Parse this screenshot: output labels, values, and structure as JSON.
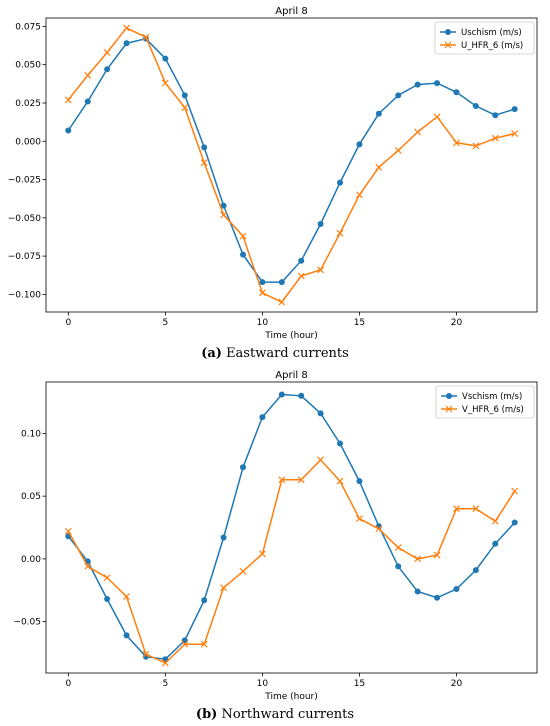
{
  "captions": [
    {
      "letter": "(a)",
      "text": " Eastward currents"
    },
    {
      "letter": "(b)",
      "text": " Northward currents"
    }
  ],
  "chart_data": [
    {
      "type": "line",
      "title": "April 8",
      "xlabel": "Time (hour)",
      "ylabel": "",
      "xlim": [
        -1.15,
        24.15
      ],
      "ylim": [
        -0.1115,
        0.0805
      ],
      "xticks": [
        0,
        5,
        10,
        15,
        20
      ],
      "yticks": [
        -0.1,
        -0.075,
        -0.05,
        -0.025,
        0.0,
        0.025,
        0.05,
        0.075
      ],
      "ytick_labels": [
        "−0.100",
        "−0.075",
        "−0.050",
        "−0.025",
        "0.000",
        "0.025",
        "0.050",
        "0.075"
      ],
      "grid": false,
      "legend": "top-right",
      "x": [
        0,
        1,
        2,
        3,
        4,
        5,
        6,
        7,
        8,
        9,
        10,
        11,
        12,
        13,
        14,
        15,
        16,
        17,
        18,
        19,
        20,
        21,
        22,
        23
      ],
      "series": [
        {
          "name": "Uschism (m/s)",
          "color": "#1f77b4",
          "marker": "circle",
          "values": [
            0.007,
            0.026,
            0.047,
            0.064,
            0.067,
            0.054,
            0.03,
            -0.004,
            -0.042,
            -0.074,
            -0.092,
            -0.092,
            -0.078,
            -0.054,
            -0.027,
            -0.002,
            0.018,
            0.03,
            0.037,
            0.038,
            0.032,
            0.023,
            0.017,
            0.021
          ]
        },
        {
          "name": "U_HFR_6 (m/s)",
          "color": "#ff7f0e",
          "marker": "x",
          "values": [
            0.027,
            0.043,
            0.058,
            0.074,
            0.068,
            0.038,
            0.022,
            -0.014,
            -0.048,
            -0.062,
            -0.099,
            -0.105,
            -0.088,
            -0.084,
            -0.06,
            -0.035,
            -0.017,
            -0.006,
            0.006,
            0.016,
            -0.001,
            -0.003,
            0.002,
            0.005
          ]
        }
      ]
    },
    {
      "type": "line",
      "title": "April 8",
      "xlabel": "Time (hour)",
      "ylabel": "",
      "xlim": [
        -1.15,
        24.15
      ],
      "ylim": [
        -0.091,
        0.141
      ],
      "xticks": [
        0,
        5,
        10,
        15,
        20
      ],
      "yticks": [
        -0.05,
        0.0,
        0.05,
        0.1
      ],
      "ytick_labels": [
        "−0.05",
        "0.00",
        "0.05",
        "0.10"
      ],
      "grid": false,
      "legend": "top-right",
      "x": [
        0,
        1,
        2,
        3,
        4,
        5,
        6,
        7,
        8,
        9,
        10,
        11,
        12,
        13,
        14,
        15,
        16,
        17,
        18,
        19,
        20,
        21,
        22,
        23
      ],
      "series": [
        {
          "name": "Vschism (m/s)",
          "color": "#1f77b4",
          "marker": "circle",
          "values": [
            0.018,
            -0.002,
            -0.032,
            -0.061,
            -0.078,
            -0.08,
            -0.065,
            -0.033,
            0.017,
            0.073,
            0.113,
            0.131,
            0.13,
            0.116,
            0.092,
            0.062,
            0.026,
            -0.006,
            -0.026,
            -0.031,
            -0.024,
            -0.009,
            0.012,
            0.029
          ]
        },
        {
          "name": "V_HFR_6 (m/s)",
          "color": "#ff7f0e",
          "marker": "x",
          "values": [
            0.022,
            -0.006,
            -0.015,
            -0.03,
            -0.076,
            -0.083,
            -0.068,
            -0.068,
            -0.023,
            -0.01,
            0.004,
            0.063,
            0.063,
            0.079,
            0.062,
            0.032,
            0.024,
            0.009,
            0.0,
            0.003,
            0.04,
            0.04,
            0.03,
            0.054
          ]
        }
      ]
    }
  ]
}
